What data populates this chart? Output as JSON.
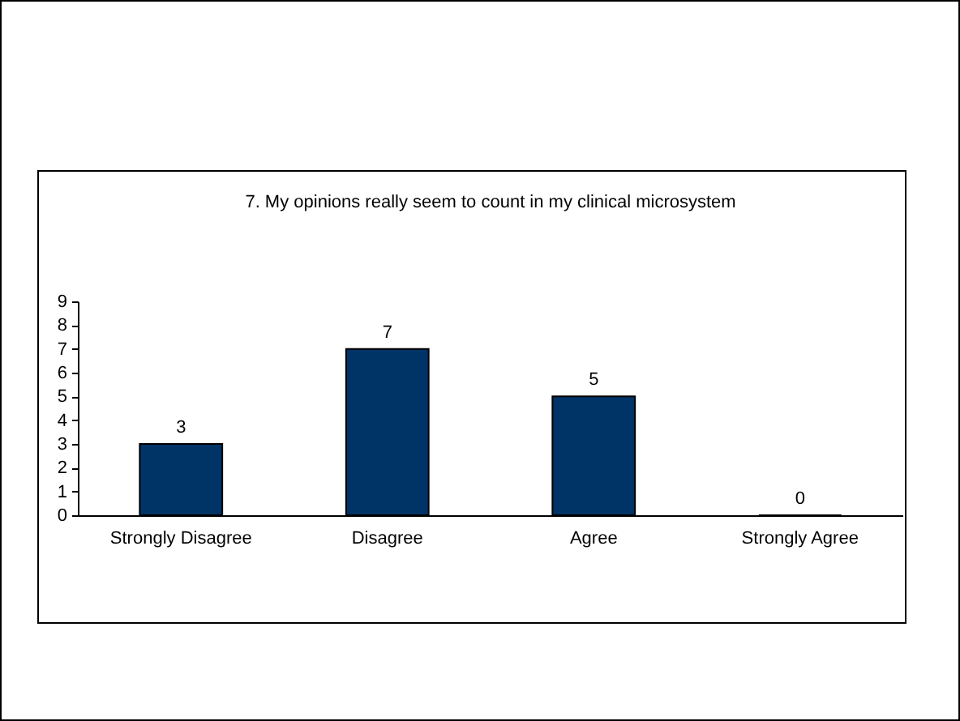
{
  "chart_data": {
    "type": "bar",
    "title": "7. My opinions really seem to count in my clinical microsystem",
    "categories": [
      "Strongly Disagree",
      "Disagree",
      "Agree",
      "Strongly Agree"
    ],
    "values": [
      3,
      7,
      5,
      0
    ],
    "color": "#003366",
    "ylim": [
      0,
      9
    ],
    "yticks": [
      0,
      1,
      2,
      3,
      4,
      5,
      6,
      7,
      8,
      9
    ],
    "grid": false,
    "data_labels": true
  }
}
